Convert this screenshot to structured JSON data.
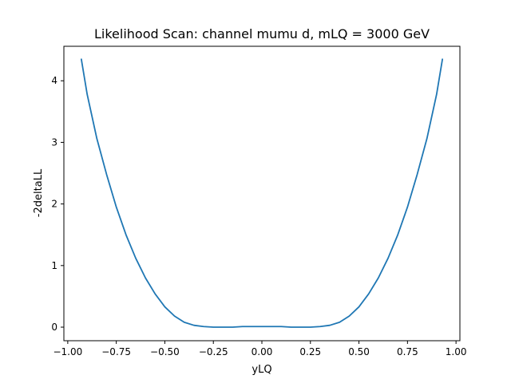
{
  "chart_data": {
    "type": "line",
    "title": "Likelihood Scan: channel mumu d, mLQ = 3000 GeV",
    "xlabel": "yLQ",
    "ylabel": "-2deltaLL",
    "xlim": [
      -1.02,
      1.02
    ],
    "ylim": [
      -0.22,
      4.56
    ],
    "xticks": [
      -1.0,
      -0.75,
      -0.5,
      -0.25,
      0.0,
      0.25,
      0.5,
      0.75,
      1.0
    ],
    "xtick_labels": [
      "−1.00",
      "−0.75",
      "−0.50",
      "−0.25",
      "0.00",
      "0.25",
      "0.50",
      "0.75",
      "1.00"
    ],
    "yticks": [
      0,
      1,
      2,
      3,
      4
    ],
    "ytick_labels": [
      "0",
      "1",
      "2",
      "3",
      "4"
    ],
    "grid": false,
    "series": [
      {
        "color": "#1f77b4",
        "x": [
          -0.93,
          -0.9,
          -0.85,
          -0.8,
          -0.75,
          -0.7,
          -0.65,
          -0.6,
          -0.55,
          -0.5,
          -0.45,
          -0.4,
          -0.35,
          -0.3,
          -0.25,
          -0.2,
          -0.15,
          -0.1,
          -0.05,
          0.0,
          0.05,
          0.1,
          0.15,
          0.2,
          0.25,
          0.3,
          0.35,
          0.4,
          0.45,
          0.5,
          0.55,
          0.6,
          0.65,
          0.7,
          0.75,
          0.8,
          0.85,
          0.9,
          0.93
        ],
        "y": [
          4.35,
          3.78,
          3.06,
          2.48,
          1.95,
          1.5,
          1.12,
          0.8,
          0.54,
          0.33,
          0.18,
          0.08,
          0.03,
          0.01,
          0.0,
          0.0,
          0.0,
          0.01,
          0.01,
          0.01,
          0.01,
          0.01,
          0.0,
          0.0,
          0.0,
          0.01,
          0.03,
          0.08,
          0.18,
          0.33,
          0.54,
          0.8,
          1.12,
          1.5,
          1.95,
          2.48,
          3.06,
          3.78,
          4.35
        ]
      }
    ]
  }
}
